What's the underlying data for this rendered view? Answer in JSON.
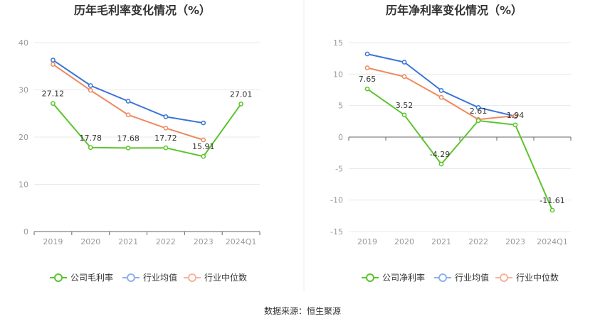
{
  "colors": {
    "company": "#5bc42d",
    "industry_avg": "#3a73d9",
    "industry_median": "#ef8a5f",
    "legend_avg": "#8fb0ea",
    "legend_median": "#f4b49a",
    "grid": "#e8e8e8",
    "axis": "#666666",
    "divider": "#eeeeee"
  },
  "source": "数据来源：恒生聚源",
  "chart_data": [
    {
      "type": "line",
      "title": "历年毛利率变化情况（%）",
      "categories": [
        "2019",
        "2020",
        "2021",
        "2022",
        "2023",
        "2024Q1"
      ],
      "ylim": [
        0,
        40
      ],
      "yticks": [
        0,
        10,
        20,
        30,
        40
      ],
      "grid": true,
      "legend_position": "bottom",
      "series": [
        {
          "name": "公司毛利率",
          "role": "company",
          "values": [
            27.12,
            17.78,
            17.68,
            17.72,
            15.91,
            27.01
          ],
          "labels": [
            "27.12",
            "17.78",
            "17.68",
            "17.72",
            "15.91",
            "27.01"
          ]
        },
        {
          "name": "行业均值",
          "role": "industry_avg",
          "values": [
            36.3,
            30.9,
            27.6,
            24.3,
            23.0,
            null
          ]
        },
        {
          "name": "行业中位数",
          "role": "industry_median",
          "values": [
            35.4,
            29.9,
            24.7,
            21.9,
            19.4,
            null
          ]
        }
      ]
    },
    {
      "type": "line",
      "title": "历年净利率变化情况（%）",
      "categories": [
        "2019",
        "2020",
        "2021",
        "2022",
        "2023",
        "2024Q1"
      ],
      "ylim": [
        -15,
        15
      ],
      "yticks": [
        -15,
        -10,
        -5,
        0,
        5,
        10,
        15
      ],
      "grid": true,
      "legend_position": "bottom",
      "series": [
        {
          "name": "公司净利率",
          "role": "company",
          "values": [
            7.65,
            3.52,
            -4.29,
            2.61,
            1.94,
            -11.61
          ],
          "labels": [
            "7.65",
            "3.52",
            "-4.29",
            "2.61",
            "1.94",
            "-11.61"
          ]
        },
        {
          "name": "行业均值",
          "role": "industry_avg",
          "values": [
            13.2,
            11.9,
            7.4,
            4.7,
            3.3,
            null
          ]
        },
        {
          "name": "行业中位数",
          "role": "industry_median",
          "values": [
            11.0,
            9.6,
            6.3,
            2.8,
            3.4,
            null
          ]
        }
      ]
    }
  ]
}
